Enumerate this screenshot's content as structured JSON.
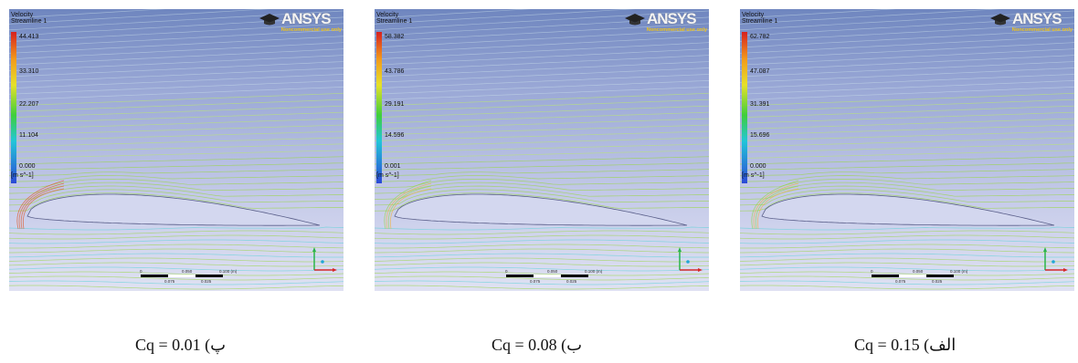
{
  "panels": [
    {
      "legend": {
        "title": "Velocity",
        "subtitle": "Streamline 1",
        "ticks": [
          "44.413",
          "33.310",
          "22.207",
          "11.104",
          "0.000"
        ],
        "unit": "[m s^-1]"
      },
      "logo": {
        "name": "ANSYS",
        "sub": "Noncommercial use only"
      },
      "scale": [
        "0",
        "0.050",
        "0.100 (m)",
        "0.075",
        "0.025"
      ],
      "caption": "Cq = 0.01 (پ"
    },
    {
      "legend": {
        "title": "Velocity",
        "subtitle": "Streamline 1",
        "ticks": [
          "58.382",
          "43.786",
          "29.191",
          "14.596",
          "0.001"
        ],
        "unit": "[m s^-1]"
      },
      "logo": {
        "name": "ANSYS",
        "sub": "Noncommercial use only"
      },
      "scale": [
        "0",
        "0.050",
        "0.100 (m)",
        "0.075",
        "0.025"
      ],
      "caption": "Cq = 0.08 (ب"
    },
    {
      "legend": {
        "title": "Velocity",
        "subtitle": "Streamline 1",
        "ticks": [
          "62.782",
          "47.087",
          "31.391",
          "15.696",
          "0.000"
        ],
        "unit": "[m s^-1]"
      },
      "logo": {
        "name": "ANSYS",
        "sub": "Noncommercial use only"
      },
      "scale": [
        "0",
        "0.050",
        "0.100 (m)",
        "0.075",
        "0.025"
      ],
      "caption": "Cq = 0.15 (الف"
    }
  ],
  "colors": {
    "streamline_fast": "#e05a2a",
    "streamline_mid": "#9bd64a",
    "streamline_slow": "#5fd3d9",
    "background_top": "#6f86bf",
    "background_bottom": "#dfe1f2"
  }
}
